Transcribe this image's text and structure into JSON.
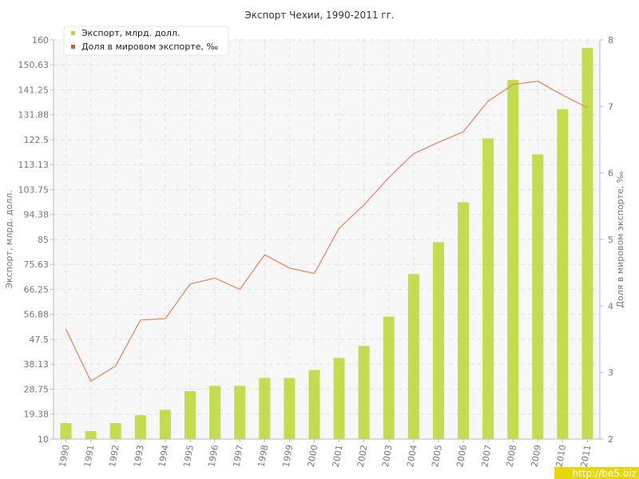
{
  "chart_data": {
    "type": "bar",
    "title": "Экспорт Чехии, 1990-2011 гг.",
    "ylabel": "Экспорт, млрд. долл.",
    "y2label": "Доля в мировом экспорте, ‰",
    "ylim": [
      10,
      160
    ],
    "y2lim": [
      2,
      8
    ],
    "y_ticks": [
      "10",
      "19.38",
      "28.75",
      "38.13",
      "47.5",
      "56.88",
      "66.25",
      "75.63",
      "85",
      "94.38",
      "103.75",
      "113.13",
      "122.5",
      "131.88",
      "141.25",
      "150.63",
      "160"
    ],
    "y2_ticks": [
      "2",
      "3",
      "4",
      "5",
      "6",
      "7",
      "8"
    ],
    "categories": [
      "1990",
      "1991",
      "1992",
      "1993",
      "1994",
      "1995",
      "1996",
      "1997",
      "1998",
      "1999",
      "2000",
      "2001",
      "2002",
      "2003",
      "2004",
      "2005",
      "2006",
      "2007",
      "2008",
      "2009",
      "2010",
      "2011"
    ],
    "grid": true,
    "legend_position": "top-left",
    "series": [
      {
        "name": "Экспорт, млрд. долл.",
        "type": "bar",
        "axis": "left",
        "color": "#b8d832",
        "values": [
          16.0,
          13.0,
          16.0,
          19.0,
          21.0,
          28.0,
          30.0,
          30.0,
          33.0,
          33.0,
          36.0,
          40.5,
          45.0,
          56.0,
          72.0,
          84.0,
          99.0,
          123.0,
          145.0,
          117.0,
          134.0,
          157.0
        ]
      },
      {
        "name": "Доля в мировом экспорте, ‰",
        "type": "line",
        "axis": "right",
        "color": "#e8825a",
        "values": [
          3.65,
          2.87,
          3.1,
          3.79,
          3.81,
          4.33,
          4.42,
          4.25,
          4.77,
          4.57,
          4.49,
          5.17,
          5.52,
          5.93,
          6.29,
          6.46,
          6.62,
          7.08,
          7.33,
          7.38,
          7.17,
          6.98
        ]
      }
    ],
    "watermark": "http://be5.biz"
  }
}
